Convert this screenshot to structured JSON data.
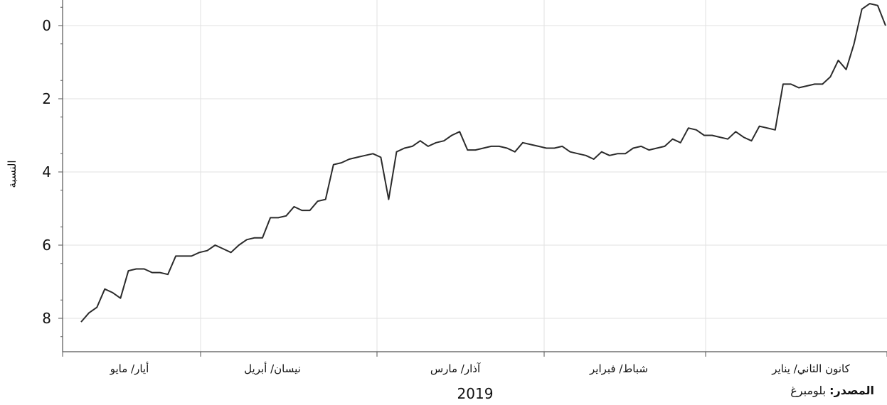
{
  "chart_data": {
    "type": "line",
    "ylabel": "النسبة",
    "xlabel": "2019",
    "y_inverted": true,
    "ylim": [
      9,
      -0.7
    ],
    "yticks": [
      0,
      2,
      4,
      6,
      8
    ],
    "grid": true,
    "x_direction": "right-to-left (time runs from May on the left to January on the right)",
    "months": [
      "أيار/ مايو",
      "نيسان/ أبريل",
      "آذار/ مارس",
      "شباط/ فبراير",
      "كانون الثاني/ يناير"
    ],
    "series": [
      {
        "values": [
          8.1,
          7.85,
          7.7,
          7.2,
          7.3,
          7.45,
          6.7,
          6.65,
          6.65,
          6.75,
          6.75,
          6.8,
          6.3,
          6.3,
          6.3,
          6.2,
          6.15,
          6.0,
          6.1,
          6.2,
          6.0,
          5.85,
          5.8,
          5.8,
          5.25,
          5.25,
          5.2,
          4.95,
          5.05,
          5.05,
          4.8,
          4.75,
          3.8,
          3.75,
          3.65,
          3.6,
          3.55,
          3.5,
          3.6,
          4.75,
          3.45,
          3.35,
          3.3,
          3.15,
          3.3,
          3.2,
          3.15,
          3.0,
          2.9,
          3.4,
          3.4,
          3.35,
          3.3,
          3.3,
          3.35,
          3.45,
          3.2,
          3.25,
          3.3,
          3.35,
          3.35,
          3.3,
          3.45,
          3.5,
          3.55,
          3.65,
          3.45,
          3.55,
          3.5,
          3.5,
          3.35,
          3.3,
          3.4,
          3.35,
          3.3,
          3.1,
          3.2,
          2.8,
          2.85,
          3.0,
          3.0,
          3.05,
          3.1,
          2.9,
          3.05,
          3.15,
          2.75,
          2.8,
          2.85,
          1.6,
          1.6,
          1.7,
          1.65,
          1.6,
          1.6,
          1.4,
          0.95,
          1.2,
          0.5,
          -0.45,
          -0.6,
          -0.55,
          0.0
        ]
      }
    ]
  },
  "footer": {
    "source_label": "المصدر:",
    "source_value": "بلومبرغ"
  }
}
